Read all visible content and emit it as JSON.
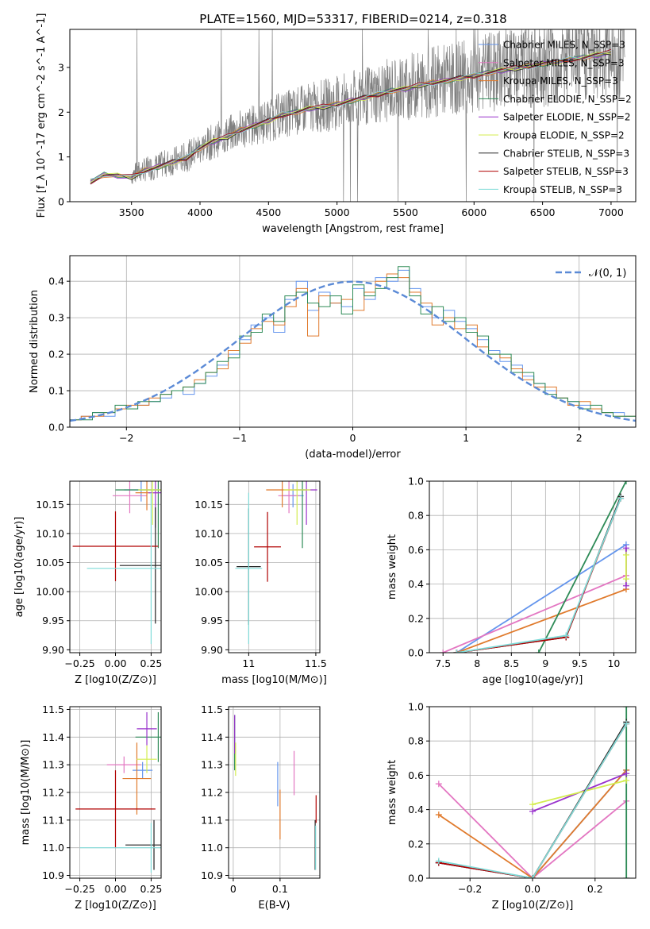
{
  "figure": {
    "title": "PLATE=1560, MJD=53317, FIBERID=0214, z=0.318"
  },
  "chart_data": [
    {
      "id": "spectrum",
      "type": "line",
      "title": "PLATE=1560, MJD=53317, FIBERID=0214, z=0.318",
      "xlabel": "wavelength [Angstrom, rest frame]",
      "ylabel": "Flux [f_λ 10^-17 erg cm^-2 s^-1 A^-1]",
      "xlim": [
        3050,
        7180
      ],
      "ylim": [
        0,
        3.85
      ],
      "xticks": [
        3500,
        4000,
        4500,
        5000,
        5500,
        6000,
        6500,
        7000
      ],
      "yticks": [
        0,
        1,
        2,
        3
      ],
      "grid": false,
      "legend": "upper right",
      "data_series": {
        "name": "",
        "color": "#808080",
        "x": [
          3500,
          3600,
          3700,
          3800,
          3900,
          4000,
          4100,
          4200,
          4300,
          4400,
          4500,
          4600,
          4700,
          4800,
          4900,
          5000,
          5100,
          5200,
          5300,
          5400,
          5500,
          5600,
          5700,
          5800,
          5900,
          6000,
          6100,
          6200,
          6300,
          6400,
          6500,
          6600,
          6700,
          6800,
          6900,
          7000,
          7100
        ],
        "y": [
          0.6,
          0.72,
          0.8,
          0.9,
          1.0,
          1.2,
          1.35,
          1.5,
          1.62,
          1.72,
          1.82,
          1.95,
          2.02,
          2.1,
          2.15,
          2.2,
          2.28,
          2.35,
          2.42,
          2.5,
          2.55,
          2.62,
          2.68,
          2.72,
          2.78,
          2.85,
          2.9,
          2.95,
          3.0,
          3.05,
          3.1,
          3.15,
          3.2,
          3.25,
          3.3,
          3.35,
          3.4
        ]
      },
      "model_x": [
        3200,
        3300,
        3400,
        3500,
        3600,
        3700,
        3800,
        3900,
        4000,
        4100,
        4200,
        4300,
        4400,
        4500,
        4600,
        4700,
        4800,
        4900,
        5000,
        5100,
        5200,
        5300,
        5400,
        5500,
        5600,
        5700,
        5800,
        5900,
        6000,
        6100,
        6200,
        6300,
        6400,
        6500,
        6600,
        6700,
        6800,
        6900,
        7000
      ],
      "model_y": [
        0.45,
        0.6,
        0.58,
        0.55,
        0.7,
        0.78,
        0.88,
        0.98,
        1.2,
        1.35,
        1.45,
        1.6,
        1.7,
        1.8,
        1.95,
        2.0,
        2.08,
        2.12,
        2.18,
        2.25,
        2.32,
        2.4,
        2.48,
        2.52,
        2.6,
        2.66,
        2.7,
        2.76,
        2.82,
        2.88,
        2.93,
        2.98,
        3.02,
        3.08,
        3.12,
        3.18,
        3.22,
        3.28,
        3.34
      ],
      "series": [
        {
          "name": "Chabrier MILES, N_SSP=3",
          "color": "#6495ed"
        },
        {
          "name": "Salpeter MILES, N_SSP=3",
          "color": "#e377c2"
        },
        {
          "name": "Kroupa MILES, N_SSP=3",
          "color": "#e07a2c"
        },
        {
          "name": "Chabrier ELODIE, N_SSP=2",
          "color": "#2e8b57"
        },
        {
          "name": "Salpeter ELODIE, N_SSP=2",
          "color": "#9932cc"
        },
        {
          "name": "Kroupa ELODIE, N_SSP=2",
          "color": "#d4ed4f"
        },
        {
          "name": "Chabrier STELIB, N_SSP=3",
          "color": "#222222"
        },
        {
          "name": "Salpeter STELIB, N_SSP=3",
          "color": "#b00000"
        },
        {
          "name": "Kroupa STELIB, N_SSP=3",
          "color": "#7fdbd8"
        }
      ]
    },
    {
      "id": "residuals",
      "type": "bar",
      "xlabel": "(data-model)/error",
      "ylabel": "Normed distribution",
      "xlim": [
        -2.5,
        2.5
      ],
      "ylim": [
        0,
        0.47
      ],
      "xticks": [
        -2,
        -1,
        0,
        1,
        2
      ],
      "yticks": [
        0.0,
        0.1,
        0.2,
        0.3,
        0.4
      ],
      "grid": true,
      "legend": "upper right",
      "reference_curve": {
        "name": "𝒩(0, 1)",
        "color": "#5b8ad6",
        "mean": 0,
        "sigma": 1
      },
      "bin_edges": [
        -2.5,
        -2.4,
        -2.3,
        -2.2,
        -2.1,
        -2.0,
        -1.9,
        -1.8,
        -1.7,
        -1.6,
        -1.5,
        -1.4,
        -1.3,
        -1.2,
        -1.1,
        -1.0,
        -0.9,
        -0.8,
        -0.7,
        -0.6,
        -0.5,
        -0.4,
        -0.3,
        -0.2,
        -0.1,
        0.0,
        0.1,
        0.2,
        0.3,
        0.4,
        0.5,
        0.6,
        0.7,
        0.8,
        0.9,
        1.0,
        1.1,
        1.2,
        1.3,
        1.4,
        1.5,
        1.6,
        1.7,
        1.8,
        1.9,
        2.0,
        2.1,
        2.2,
        2.3,
        2.4,
        2.5
      ],
      "histograms": [
        [
          0.02,
          0.03,
          0.04,
          0.03,
          0.05,
          0.05,
          0.06,
          0.07,
          0.08,
          0.1,
          0.09,
          0.12,
          0.14,
          0.17,
          0.2,
          0.24,
          0.28,
          0.3,
          0.26,
          0.35,
          0.4,
          0.32,
          0.37,
          0.34,
          0.33,
          0.38,
          0.35,
          0.41,
          0.4,
          0.43,
          0.38,
          0.33,
          0.3,
          0.32,
          0.29,
          0.27,
          0.24,
          0.21,
          0.18,
          0.17,
          0.14,
          0.12,
          0.1,
          0.08,
          0.07,
          0.06,
          0.05,
          0.04,
          0.04,
          0.03
        ],
        [
          0.02,
          0.03,
          0.03,
          0.04,
          0.05,
          0.06,
          0.06,
          0.08,
          0.09,
          0.1,
          0.11,
          0.13,
          0.15,
          0.16,
          0.21,
          0.23,
          0.27,
          0.29,
          0.28,
          0.33,
          0.38,
          0.25,
          0.36,
          0.34,
          0.35,
          0.32,
          0.37,
          0.4,
          0.42,
          0.41,
          0.37,
          0.34,
          0.28,
          0.3,
          0.27,
          0.28,
          0.22,
          0.2,
          0.19,
          0.16,
          0.13,
          0.11,
          0.11,
          0.08,
          0.06,
          0.07,
          0.05,
          0.04,
          0.03,
          0.03
        ],
        [
          0.02,
          0.02,
          0.04,
          0.04,
          0.06,
          0.05,
          0.07,
          0.07,
          0.09,
          0.1,
          0.11,
          0.12,
          0.15,
          0.18,
          0.19,
          0.25,
          0.26,
          0.31,
          0.29,
          0.36,
          0.37,
          0.34,
          0.33,
          0.36,
          0.31,
          0.39,
          0.36,
          0.38,
          0.41,
          0.44,
          0.36,
          0.31,
          0.33,
          0.29,
          0.3,
          0.26,
          0.25,
          0.2,
          0.2,
          0.15,
          0.15,
          0.12,
          0.09,
          0.08,
          0.07,
          0.05,
          0.06,
          0.04,
          0.03,
          0.03
        ]
      ],
      "histogram_colors": [
        "#6495ed",
        "#e07a2c",
        "#2e8b57"
      ]
    },
    {
      "id": "age-vs-z",
      "type": "scatter",
      "xlabel": "Z [log10(Z/Z⊙)]",
      "ylabel": "age  [log10(age/yr)]",
      "xlim": [
        -0.32,
        0.32
      ],
      "ylim": [
        9.895,
        10.19
      ],
      "xticks": [
        -0.25,
        0.0,
        0.25
      ],
      "xtick_labels": [
        "−0.25",
        "0.00",
        "0.25"
      ],
      "yticks": [
        9.9,
        9.95,
        10.0,
        10.05,
        10.1,
        10.15
      ],
      "grid": true,
      "points": [
        {
          "x": 0.18,
          "y": 10.175,
          "xerr": 0.12,
          "yerr": 0.02,
          "color": "#6495ed"
        },
        {
          "x": 0.1,
          "y": 10.165,
          "xerr": 0.12,
          "yerr": 0.03,
          "color": "#e377c2"
        },
        {
          "x": 0.22,
          "y": 10.17,
          "xerr": 0.08,
          "yerr": 0.03,
          "color": "#e07a2c"
        },
        {
          "x": 0.3,
          "y": 10.175,
          "xerr": 0.3,
          "yerr": 0.1,
          "color": "#2e8b57"
        },
        {
          "x": 0.28,
          "y": 10.17,
          "xerr": 0.05,
          "yerr": 0.06,
          "color": "#9932cc"
        },
        {
          "x": 0.26,
          "y": 10.175,
          "xerr": 0.1,
          "yerr": 0.06,
          "color": "#d4ed4f"
        },
        {
          "x": 0.28,
          "y": 10.045,
          "xerr": 0.25,
          "yerr": 0.1,
          "color": "#222222"
        },
        {
          "x": 0.0,
          "y": 10.078,
          "xerr": 0.3,
          "yerr": 0.06,
          "color": "#b00000"
        },
        {
          "x": 0.25,
          "y": 10.04,
          "xerr": 0.45,
          "yerr": 0.13,
          "color": "#7fdbd8"
        }
      ]
    },
    {
      "id": "age-vs-mass",
      "type": "scatter",
      "xlabel": "mass [log10(M/M⊙)]",
      "ylabel": "",
      "xlim": [
        10.85,
        11.53
      ],
      "ylim": [
        9.895,
        10.19
      ],
      "xticks": [
        11.0,
        11.5
      ],
      "yticks": [
        9.9,
        9.95,
        10.0,
        10.05,
        10.1,
        10.15
      ],
      "grid": true,
      "points": [
        {
          "x": 11.33,
          "y": 10.165,
          "xerr": 0.08,
          "yerr": 0.02,
          "color": "#6495ed"
        },
        {
          "x": 11.3,
          "y": 10.165,
          "xerr": 0.08,
          "yerr": 0.03,
          "color": "#e377c2"
        },
        {
          "x": 11.25,
          "y": 10.175,
          "xerr": 0.12,
          "yerr": 0.03,
          "color": "#e07a2c"
        },
        {
          "x": 11.4,
          "y": 10.175,
          "xerr": 0.02,
          "yerr": 0.1,
          "color": "#2e8b57"
        },
        {
          "x": 11.43,
          "y": 10.175,
          "xerr": 0.08,
          "yerr": 0.06,
          "color": "#9932cc"
        },
        {
          "x": 11.36,
          "y": 10.175,
          "xerr": 0.1,
          "yerr": 0.06,
          "color": "#d4ed4f"
        },
        {
          "x": 11.0,
          "y": 10.043,
          "xerr": 0.09,
          "yerr": 0.1,
          "color": "#222222"
        },
        {
          "x": 11.14,
          "y": 10.077,
          "xerr": 0.1,
          "yerr": 0.06,
          "color": "#b00000"
        },
        {
          "x": 11.0,
          "y": 10.04,
          "xerr": 0.1,
          "yerr": 0.13,
          "color": "#7fdbd8"
        }
      ]
    },
    {
      "id": "weight-vs-age",
      "type": "line",
      "xlabel": "age  [log10(age/yr)]",
      "ylabel": "mass weight",
      "xlim": [
        7.3,
        10.32
      ],
      "ylim": [
        0,
        1.0
      ],
      "xticks": [
        7.5,
        8.0,
        8.5,
        9.0,
        9.5,
        10.0
      ],
      "yticks": [
        0.0,
        0.2,
        0.4,
        0.6,
        0.8,
        1.0
      ],
      "grid": true,
      "series": [
        {
          "name": "Chabrier MILES",
          "color": "#6495ed",
          "x": [
            7.7,
            10.18
          ],
          "y": [
            0.0,
            0.63
          ]
        },
        {
          "name": "Salpeter MILES",
          "color": "#e377c2",
          "x": [
            7.5,
            10.18
          ],
          "y": [
            0.0,
            0.45
          ]
        },
        {
          "name": "Kroupa MILES",
          "color": "#e07a2c",
          "x": [
            7.7,
            10.18
          ],
          "y": [
            0.0,
            0.37
          ]
        },
        {
          "name": "Chabrier ELODIE",
          "color": "#2e8b57",
          "x": [
            8.9,
            10.18
          ],
          "y": [
            0.0,
            1.0
          ]
        },
        {
          "name": "Salpeter ELODIE",
          "color": "#9932cc",
          "x": [
            10.18,
            10.18
          ],
          "y": [
            0.39,
            0.61
          ]
        },
        {
          "name": "Kroupa ELODIE",
          "color": "#d4ed4f",
          "x": [
            10.18,
            10.18
          ],
          "y": [
            0.43,
            0.57
          ]
        },
        {
          "name": "Chabrier STELIB",
          "color": "#222222",
          "x": [
            7.7,
            9.3,
            10.1
          ],
          "y": [
            0.0,
            0.09,
            0.91
          ]
        },
        {
          "name": "Salpeter STELIB",
          "color": "#b00000",
          "x": [
            7.7,
            9.3,
            10.1
          ],
          "y": [
            0.0,
            0.09,
            0.9
          ]
        },
        {
          "name": "Kroupa STELIB",
          "color": "#7fdbd8",
          "x": [
            7.7,
            9.3,
            10.1
          ],
          "y": [
            0.0,
            0.1,
            0.9
          ]
        }
      ]
    },
    {
      "id": "mass-vs-z",
      "type": "scatter",
      "xlabel": "Z [log10(Z/Z⊙)]",
      "ylabel": "mass [log10(M/M⊙)]",
      "xlim": [
        -0.32,
        0.32
      ],
      "ylim": [
        10.89,
        11.51
      ],
      "xticks": [
        -0.25,
        0.0,
        0.25
      ],
      "xtick_labels": [
        "−0.25",
        "0.00",
        "0.25"
      ],
      "yticks": [
        10.9,
        11.0,
        11.1,
        11.2,
        11.3,
        11.4,
        11.5
      ],
      "grid": true,
      "points": [
        {
          "x": 0.19,
          "y": 11.28,
          "xerr": 0.07,
          "yerr": 0.03,
          "color": "#6495ed"
        },
        {
          "x": 0.06,
          "y": 11.3,
          "xerr": 0.12,
          "yerr": 0.03,
          "color": "#e377c2"
        },
        {
          "x": 0.15,
          "y": 11.25,
          "xerr": 0.1,
          "yerr": 0.13,
          "color": "#e07a2c"
        },
        {
          "x": 0.3,
          "y": 11.4,
          "xerr": 0.16,
          "yerr": 0.09,
          "color": "#2e8b57"
        },
        {
          "x": 0.22,
          "y": 11.43,
          "xerr": 0.07,
          "yerr": 0.06,
          "color": "#9932cc"
        },
        {
          "x": 0.22,
          "y": 11.32,
          "xerr": 0.07,
          "yerr": 0.05,
          "color": "#d4ed4f"
        },
        {
          "x": 0.27,
          "y": 11.01,
          "xerr": 0.2,
          "yerr": 0.09,
          "color": "#222222"
        },
        {
          "x": 0.0,
          "y": 11.14,
          "xerr": 0.28,
          "yerr": 0.14,
          "color": "#b00000"
        },
        {
          "x": 0.25,
          "y": 11.0,
          "xerr": 0.5,
          "yerr": 0.09,
          "color": "#7fdbd8"
        }
      ]
    },
    {
      "id": "mass-vs-ebv",
      "type": "scatter",
      "xlabel": "E(B-V)",
      "ylabel": "",
      "xlim": [
        -0.01,
        0.185
      ],
      "ylim": [
        10.89,
        11.51
      ],
      "xticks": [
        0.0,
        0.1
      ],
      "yticks": [
        10.9,
        11.0,
        11.1,
        11.2,
        11.3,
        11.4,
        11.5
      ],
      "grid": true,
      "points": [
        {
          "x": 0.095,
          "y": 11.23,
          "yerr": 0.08,
          "color": "#6495ed"
        },
        {
          "x": 0.13,
          "y": 11.27,
          "yerr": 0.08,
          "color": "#e377c2"
        },
        {
          "x": 0.1,
          "y": 11.12,
          "yerr": 0.09,
          "color": "#e07a2c"
        },
        {
          "x": 0.003,
          "y": 11.38,
          "yerr": 0.1,
          "color": "#2e8b57"
        },
        {
          "x": 0.003,
          "y": 11.41,
          "yerr": 0.07,
          "color": "#9932cc"
        },
        {
          "x": 0.005,
          "y": 11.32,
          "yerr": 0.06,
          "color": "#d4ed4f"
        },
        {
          "x": 0.175,
          "y": 11.01,
          "yerr": 0.09,
          "color": "#222222"
        },
        {
          "x": 0.177,
          "y": 11.14,
          "yerr": 0.05,
          "color": "#b00000"
        },
        {
          "x": 0.176,
          "y": 11.0,
          "yerr": 0.08,
          "color": "#7fdbd8"
        }
      ]
    },
    {
      "id": "weight-vs-z",
      "type": "line",
      "xlabel": "Z [log10(Z/Z⊙)]",
      "ylabel": "mass weight",
      "xlim": [
        -0.33,
        0.33
      ],
      "ylim": [
        0,
        1.0
      ],
      "xticks": [
        -0.2,
        0.0,
        0.2
      ],
      "xtick_labels": [
        "−0.2",
        "0.0",
        "0.2"
      ],
      "yticks": [
        0.0,
        0.2,
        0.4,
        0.6,
        0.8,
        1.0
      ],
      "grid": true,
      "series": [
        {
          "name": "Chabrier MILES",
          "color": "#6495ed",
          "x": [
            -0.3,
            0.0,
            0.3
          ],
          "y": [
            0.09,
            0.0,
            0.63
          ]
        },
        {
          "name": "Salpeter MILES",
          "color": "#e377c2",
          "x": [
            -0.3,
            0.0,
            0.3
          ],
          "y": [
            0.55,
            0.0,
            0.45
          ]
        },
        {
          "name": "Kroupa MILES",
          "color": "#e07a2c",
          "x": [
            -0.3,
            0.0,
            0.3
          ],
          "y": [
            0.37,
            0.0,
            0.63
          ]
        },
        {
          "name": "Chabrier ELODIE",
          "color": "#2e8b57",
          "x": [
            0.3,
            0.3
          ],
          "y": [
            0.0,
            1.0
          ]
        },
        {
          "name": "Salpeter ELODIE",
          "color": "#9932cc",
          "x": [
            0.0,
            0.3
          ],
          "y": [
            0.39,
            0.61
          ]
        },
        {
          "name": "Kroupa ELODIE",
          "color": "#d4ed4f",
          "x": [
            0.0,
            0.3
          ],
          "y": [
            0.43,
            0.57
          ]
        },
        {
          "name": "Chabrier STELIB",
          "color": "#222222",
          "x": [
            -0.3,
            0.0,
            0.3
          ],
          "y": [
            0.09,
            0.0,
            0.91
          ]
        },
        {
          "name": "Salpeter STELIB",
          "color": "#b00000",
          "x": [
            -0.3,
            0.0,
            0.3
          ],
          "y": [
            0.09,
            0.0,
            0.9
          ]
        },
        {
          "name": "Kroupa STELIB",
          "color": "#7fdbd8",
          "x": [
            -0.3,
            0.0,
            0.3
          ],
          "y": [
            0.1,
            0.0,
            0.9
          ]
        }
      ]
    }
  ]
}
